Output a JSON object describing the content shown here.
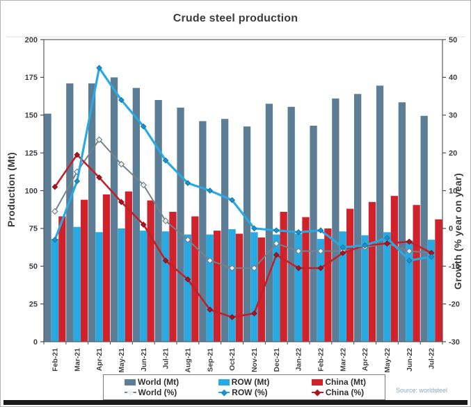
{
  "source": "Source: worldsteel",
  "chart_data": {
    "type": "bar+line",
    "title": "Crude steel production",
    "legend_position": "bottom",
    "grid": false,
    "categories": [
      "Feb-21",
      "Mar-21",
      "Apr-21",
      "May-21",
      "Jun-21",
      "Jul-21",
      "Aug-21",
      "Sep-21",
      "Oct-21",
      "Nov-21",
      "Dec-21",
      "Jan-22",
      "Feb-22",
      "Mar-22",
      "Apr-22",
      "May-22",
      "Jun-22",
      "Jul-22"
    ],
    "axes": {
      "left": {
        "label": "Production (Mt)",
        "min": 0,
        "max": 200,
        "ticks": [
          0,
          25,
          50,
          75,
          100,
          125,
          150,
          175,
          200
        ]
      },
      "right": {
        "label": "Growth (% year on year)",
        "min": -30,
        "max": 50,
        "ticks": [
          -30,
          -20,
          -10,
          0,
          10,
          20,
          30,
          40,
          50
        ]
      }
    },
    "series": [
      {
        "name": "World (Mt)",
        "kind": "bar",
        "axis": "left",
        "color": "#5c7d96",
        "values": [
          151,
          171,
          171,
          175,
          168,
          160,
          155,
          146,
          147.5,
          142.5,
          157.5,
          155.5,
          143,
          161,
          164,
          169.5,
          158.5,
          149.5
        ]
      },
      {
        "name": "ROW (Mt)",
        "kind": "bar",
        "axis": "left",
        "color": "#29a9e1",
        "values": [
          68,
          76,
          72.5,
          75,
          73.5,
          73,
          71,
          71,
          74.5,
          72.5,
          71,
          71.5,
          68,
          73,
          70.5,
          72.5,
          67,
          67.5
        ]
      },
      {
        "name": "China (Mt)",
        "kind": "bar",
        "axis": "left",
        "color": "#cf222b",
        "values": [
          83,
          94,
          97.5,
          99.5,
          93.5,
          86,
          83,
          73.5,
          71.5,
          69,
          86,
          82.5,
          75,
          88,
          92.5,
          96.5,
          90.5,
          81
        ]
      },
      {
        "name": "World (%)",
        "kind": "line",
        "axis": "right",
        "color": "#75828e",
        "marker_fill": "#eef1f3",
        "marker_stroke": "#6e7d89",
        "line_width": 2,
        "values": [
          4.5,
          15,
          23.5,
          17,
          11.5,
          2,
          -3,
          -8.5,
          -10.5,
          -10.5,
          -4,
          -6,
          -6,
          -6,
          -5,
          -4,
          -6,
          -6.5
        ]
      },
      {
        "name": "ROW (%)",
        "kind": "line",
        "axis": "right",
        "color": "#29a9e1",
        "marker_fill": "#1e93cb",
        "marker_stroke": "#1579ab",
        "line_width": 3.2,
        "values": [
          -3,
          12.5,
          42.5,
          34,
          27,
          18,
          12,
          10,
          7.5,
          0,
          -0.5,
          -1,
          -0.5,
          -5,
          -4.5,
          -2.5,
          -8.5,
          -7.5
        ]
      },
      {
        "name": "China (%)",
        "kind": "line",
        "axis": "right",
        "color": "#c1202a",
        "marker_fill": "#ab1520",
        "marker_stroke": "#8c0f18",
        "line_width": 2.6,
        "values": [
          11,
          19.5,
          13.5,
          7,
          1,
          -8.5,
          -13.5,
          -21.5,
          -23.5,
          -22.5,
          -7,
          -10.5,
          -10.5,
          -6.5,
          -4.5,
          -4,
          -3.5,
          -6.5
        ]
      }
    ]
  }
}
